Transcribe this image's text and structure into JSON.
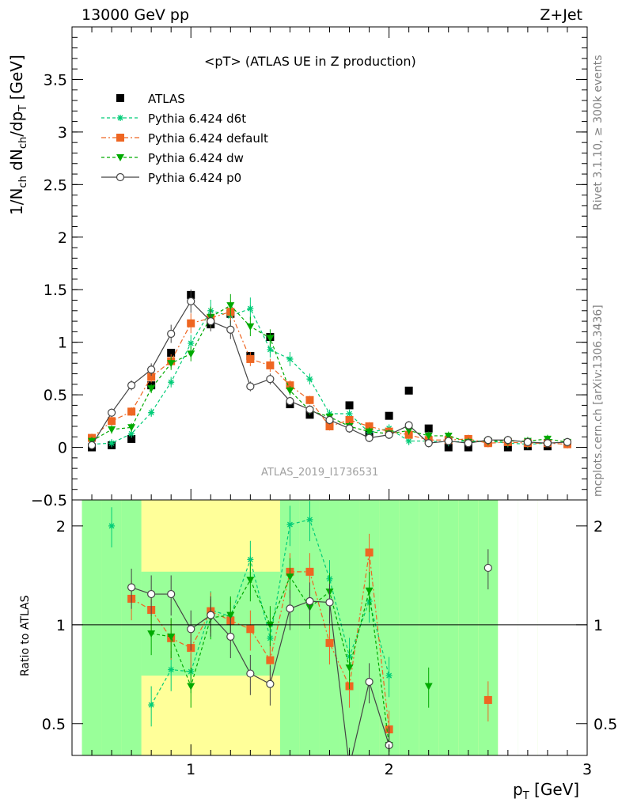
{
  "header": {
    "energy_label": "13000 GeV pp",
    "process_label": "Z+Jet",
    "rivet_label": "Rivet 3.1.10, ≥ 300k events",
    "mcplots_label": "mcplots.cern.ch [arXiv:1306.3436]"
  },
  "main_panel": {
    "ylabel": "1/N_ch dN_ch/dp_T [GeV]",
    "title": "<pT> (ATLAS UE in Z production)",
    "analysis_id": "ATLAS_2019_I1736531",
    "yticks": [
      "−0.5",
      "0",
      "0.5",
      "1",
      "1.5",
      "2",
      "2.5",
      "3",
      "3.5"
    ]
  },
  "ratio_panel": {
    "ylabel": "Ratio to ATLAS",
    "yticks": [
      "0.5",
      "1",
      "2"
    ],
    "xticks": [
      "1",
      "2",
      "3"
    ],
    "xlabel": "p_T [GeV]"
  },
  "chart_data": {
    "type": "line",
    "title": "<pT> (ATLAS UE in Z production)",
    "xlabel": "p_T [GeV]",
    "ylabel": "1/N_ch dN_ch/dp_T [GeV]",
    "xlim": [
      0.4,
      3.0
    ],
    "ylim": [
      -0.5,
      4.0
    ],
    "ratio_ylim": [
      0.4,
      2.4
    ],
    "ratio_ylabel": "Ratio to ATLAS",
    "legend_position": "top-left",
    "x": [
      0.5,
      0.6,
      0.7,
      0.8,
      0.9,
      1.0,
      1.1,
      1.2,
      1.3,
      1.4,
      1.5,
      1.6,
      1.7,
      1.8,
      1.9,
      2.0,
      2.1,
      2.2,
      2.3,
      2.4,
      2.5,
      2.6,
      2.7,
      2.8,
      2.9
    ],
    "series": [
      {
        "name": "ATLAS",
        "color": "#000000",
        "marker": "square",
        "values": [
          0.0,
          0.02,
          0.08,
          0.59,
          0.9,
          1.45,
          1.17,
          1.27,
          0.87,
          1.05,
          0.41,
          0.31,
          0.23,
          0.4,
          0.12,
          0.3,
          0.54,
          0.18,
          0.0,
          0.0,
          0.05,
          0.0,
          0.01,
          0.01,
          null
        ]
      },
      {
        "name": "Pythia 6.424 d6t",
        "color": "#00cc77",
        "marker": "star",
        "values": [
          0.03,
          0.04,
          0.13,
          0.33,
          0.62,
          0.99,
          1.3,
          1.25,
          1.32,
          0.93,
          0.84,
          0.65,
          0.32,
          0.32,
          0.14,
          0.18,
          0.06,
          0.06,
          0.05,
          0.06,
          0.06,
          0.04,
          0.03,
          0.04,
          null
        ]
      },
      {
        "name": "Pythia 6.424 default",
        "color": "#ee6622",
        "marker": "square",
        "values": [
          0.09,
          0.25,
          0.34,
          0.67,
          0.82,
          1.18,
          1.23,
          1.29,
          0.84,
          0.78,
          0.59,
          0.45,
          0.2,
          0.26,
          0.2,
          0.15,
          0.12,
          0.07,
          0.07,
          0.08,
          0.04,
          0.05,
          0.04,
          0.04,
          0.03
        ]
      },
      {
        "name": "Pythia 6.424 dw",
        "color": "#00aa00",
        "marker": "triangle-down",
        "values": [
          0.06,
          0.17,
          0.19,
          0.56,
          0.8,
          0.89,
          1.24,
          1.35,
          1.15,
          1.04,
          0.54,
          0.35,
          0.29,
          0.2,
          0.15,
          0.13,
          0.16,
          0.11,
          0.11,
          0.05,
          0.06,
          0.06,
          0.06,
          0.08,
          0.05
        ]
      },
      {
        "name": "Pythia 6.424 p0",
        "color": "#444444",
        "marker": "circle-open",
        "values": [
          0.02,
          0.33,
          0.59,
          0.74,
          1.08,
          1.39,
          1.2,
          1.12,
          0.58,
          0.65,
          0.44,
          0.36,
          0.26,
          0.18,
          0.09,
          0.12,
          0.21,
          0.04,
          0.06,
          0.04,
          0.07,
          0.07,
          0.05,
          0.04,
          0.05
        ]
      }
    ],
    "ratio_series": [
      {
        "name": "Pythia 6.424 d6t",
        "values": [
          null,
          2.0,
          null,
          0.57,
          0.73,
          0.72,
          1.11,
          1.06,
          1.58,
          0.91,
          2.02,
          2.09,
          1.38,
          0.8,
          1.18,
          0.7,
          null,
          null,
          null,
          null,
          null,
          null,
          null,
          null,
          null
        ]
      },
      {
        "name": "Pythia 6.424 default",
        "values": [
          null,
          null,
          1.2,
          1.11,
          0.91,
          0.85,
          1.1,
          1.03,
          0.97,
          0.78,
          1.45,
          1.45,
          0.88,
          0.65,
          1.66,
          0.48,
          null,
          null,
          null,
          null,
          0.59,
          null,
          null,
          null,
          null
        ]
      },
      {
        "name": "Pythia 6.424 dw",
        "values": [
          null,
          null,
          null,
          0.94,
          0.92,
          0.65,
          1.05,
          1.07,
          1.37,
          1.0,
          1.4,
          1.13,
          1.26,
          0.74,
          1.27,
          0.43,
          null,
          0.65,
          null,
          null,
          null,
          null,
          null,
          null,
          null
        ]
      },
      {
        "name": "Pythia 6.424 p0",
        "values": [
          null,
          null,
          1.3,
          1.24,
          1.24,
          0.97,
          1.07,
          0.92,
          0.71,
          0.66,
          1.12,
          1.18,
          1.17,
          0.37,
          0.67,
          0.43,
          null,
          null,
          null,
          null,
          1.49,
          null,
          null,
          null,
          null
        ]
      }
    ]
  }
}
